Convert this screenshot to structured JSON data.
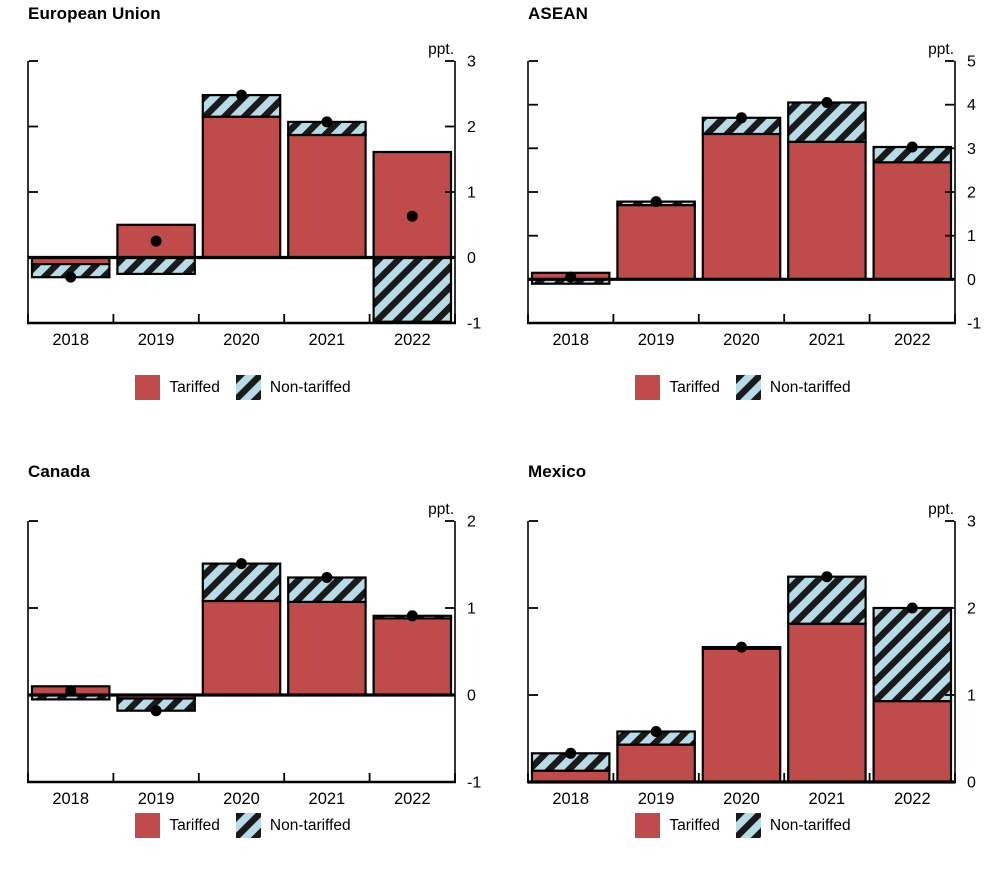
{
  "unit_label": "ppt.",
  "colors": {
    "tariffed": "#C04B4B",
    "non_tariffed": "#B8DBE8",
    "hatch_stripe": "#1A1A1A",
    "axis": "#000000",
    "marker": "#000000",
    "background": "#FFFFFF"
  },
  "legend": {
    "tariffed_label": "Tariffed",
    "non_tariffed_label": "Non-tariffed"
  },
  "chart_data": [
    {
      "type": "bar",
      "title": "European Union",
      "ylabel": "ppt.",
      "categories": [
        "2018",
        "2019",
        "2020",
        "2021",
        "2022"
      ],
      "series": [
        {
          "name": "Tariffed",
          "values": [
            -0.1,
            0.5,
            2.15,
            1.87,
            1.61
          ]
        },
        {
          "name": "Non-tariffed",
          "values": [
            -0.2,
            -0.25,
            0.33,
            0.2,
            -0.98
          ]
        }
      ],
      "totals": [
        -0.3,
        0.25,
        2.48,
        2.07,
        0.63
      ],
      "ylim": [
        -1,
        3
      ],
      "yticks": [
        -1,
        0,
        1,
        2,
        3
      ],
      "grid": false,
      "legend_position": "bottom",
      "bar_style": "stacked",
      "marker_style": "dot-total"
    },
    {
      "type": "bar",
      "title": "ASEAN",
      "ylabel": "ppt.",
      "categories": [
        "2018",
        "2019",
        "2020",
        "2021",
        "2022"
      ],
      "series": [
        {
          "name": "Tariffed",
          "values": [
            0.15,
            1.7,
            3.33,
            3.15,
            2.68
          ]
        },
        {
          "name": "Non-tariffed",
          "values": [
            -0.1,
            0.08,
            0.37,
            0.9,
            0.35
          ]
        }
      ],
      "totals": [
        0.05,
        1.78,
        3.7,
        4.05,
        3.03
      ],
      "ylim": [
        -1,
        5
      ],
      "yticks": [
        -1,
        0,
        1,
        2,
        3,
        4,
        5
      ],
      "grid": false,
      "legend_position": "bottom",
      "bar_style": "stacked",
      "marker_style": "dot-total"
    },
    {
      "type": "bar",
      "title": "Canada",
      "ylabel": "ppt.",
      "categories": [
        "2018",
        "2019",
        "2020",
        "2021",
        "2022"
      ],
      "series": [
        {
          "name": "Tariffed",
          "values": [
            0.1,
            -0.04,
            1.08,
            1.07,
            0.88
          ]
        },
        {
          "name": "Non-tariffed",
          "values": [
            -0.05,
            -0.14,
            0.43,
            0.28,
            0.03
          ]
        }
      ],
      "totals": [
        0.05,
        -0.18,
        1.51,
        1.35,
        0.91
      ],
      "ylim": [
        -1,
        2
      ],
      "yticks": [
        -1,
        0,
        1,
        2
      ],
      "grid": false,
      "legend_position": "bottom",
      "bar_style": "stacked",
      "marker_style": "dot-total"
    },
    {
      "type": "bar",
      "title": "Mexico",
      "ylabel": "ppt.",
      "categories": [
        "2018",
        "2019",
        "2020",
        "2021",
        "2022"
      ],
      "series": [
        {
          "name": "Tariffed",
          "values": [
            0.13,
            0.43,
            1.53,
            1.82,
            0.93
          ]
        },
        {
          "name": "Non-tariffed",
          "values": [
            0.2,
            0.15,
            0.02,
            0.54,
            1.07
          ]
        }
      ],
      "totals": [
        0.33,
        0.58,
        1.55,
        2.36,
        2.0
      ],
      "ylim": [
        0,
        3
      ],
      "yticks": [
        0,
        1,
        2,
        3
      ],
      "grid": false,
      "legend_position": "bottom",
      "bar_style": "stacked",
      "marker_style": "dot-total"
    }
  ]
}
